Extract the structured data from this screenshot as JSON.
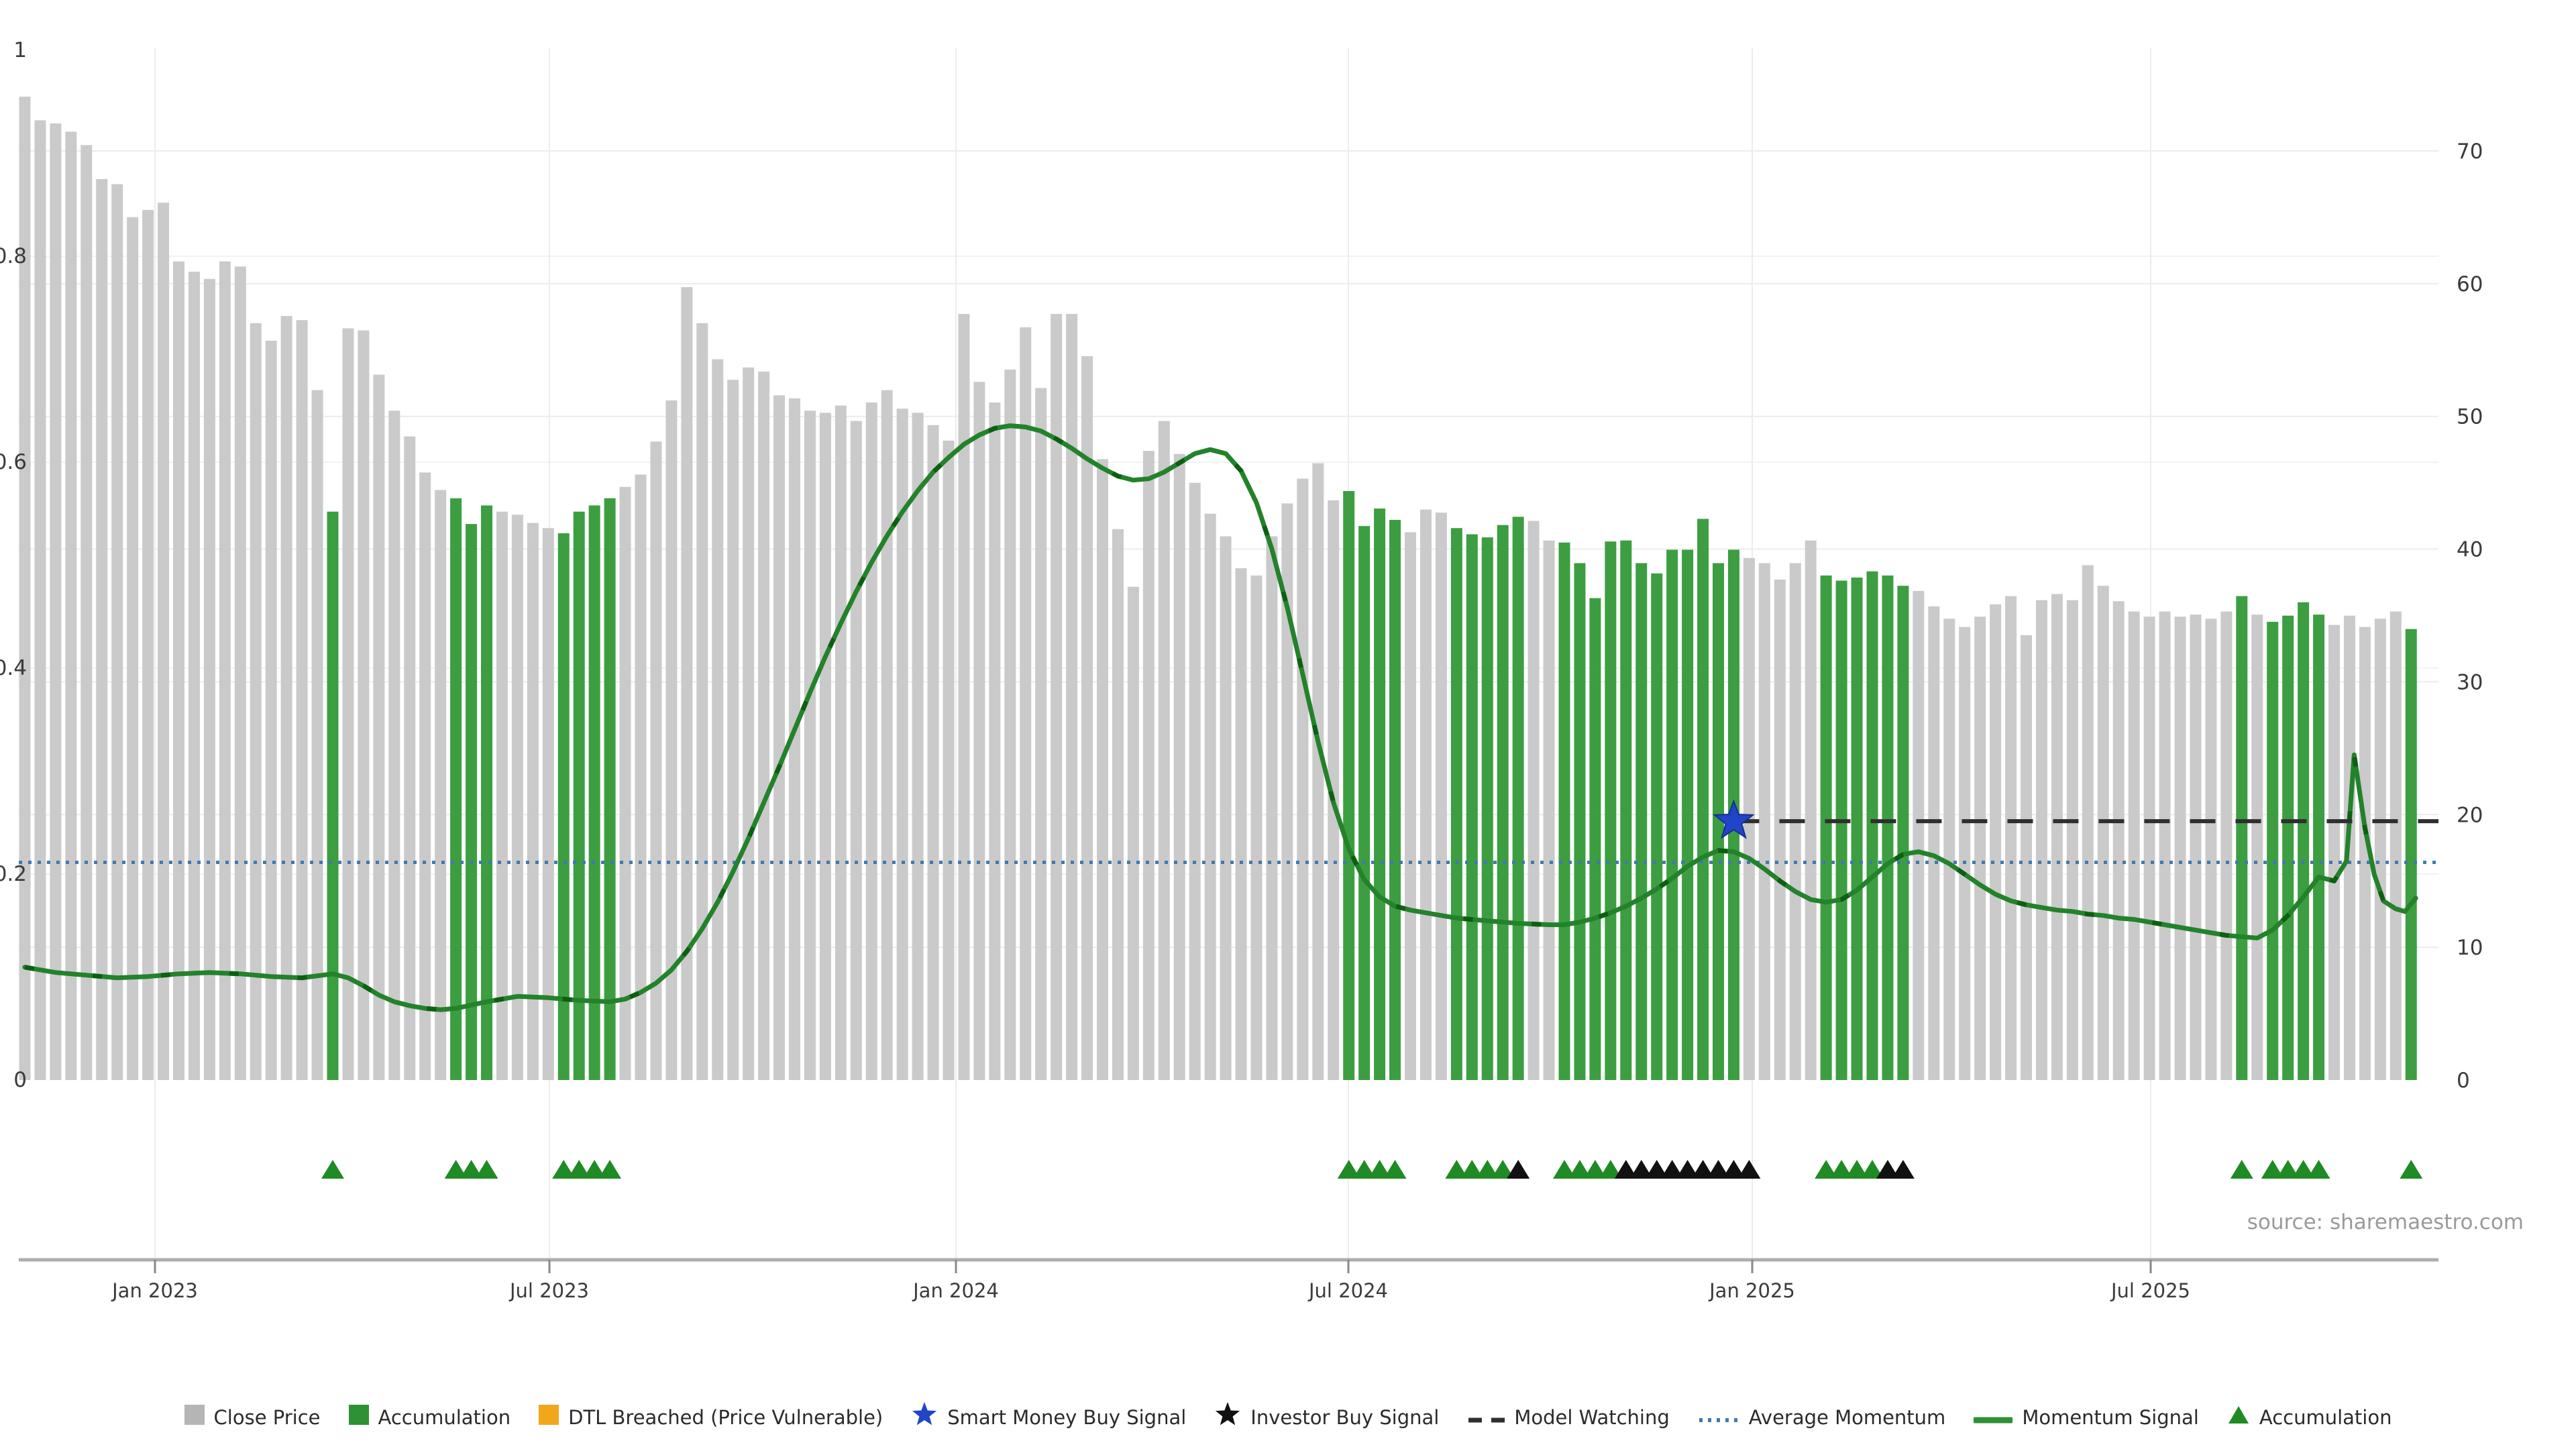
{
  "source_note": "source: sharemaestro.com",
  "colors": {
    "close_price_bar": "#cacaca",
    "accumulation_bar": "#3c9e41",
    "legend_gray": "#b5b5b5",
    "legend_green": "#2f9133",
    "dtl_breached": "#f2a71b",
    "smart_money_star": "#2144c8",
    "investor_star": "#111111",
    "model_watching_line": "#2f2f2f",
    "average_momentum_line": "#4379ad",
    "momentum_line": "#23822a",
    "momentum_line_dark": "#0d5f12",
    "triangle_green": "#1f8b24",
    "triangle_black": "#111111",
    "grid_line": "#ececec",
    "grid_line_minor": "#f2f2f2",
    "axis_line": "#adadad",
    "tick_mark": "#888888"
  },
  "legend": [
    {
      "marker": "square-gray",
      "label": "Close Price"
    },
    {
      "marker": "square-green",
      "label": "Accumulation"
    },
    {
      "marker": "square-orange",
      "label": "DTL Breached (Price Vulnerable)"
    },
    {
      "marker": "star-blue",
      "label": "Smart Money Buy Signal"
    },
    {
      "marker": "star-black",
      "label": "Investor Buy Signal"
    },
    {
      "marker": "dash-black",
      "label": "Model Watching"
    },
    {
      "marker": "dots-blue",
      "label": "Average Momentum"
    },
    {
      "marker": "line-green",
      "label": "Momentum Signal"
    },
    {
      "marker": "triangle-green",
      "label": "Accumulation"
    }
  ],
  "chart_data": {
    "type": "bar+line",
    "title": "",
    "left_axis": {
      "range": [
        0,
        1
      ],
      "ticks": [
        "0",
        "0.2",
        "0.4",
        "0.6",
        "0.8",
        "1"
      ],
      "tick_values": [
        0,
        0.2,
        0.4,
        0.6,
        0.8,
        1
      ]
    },
    "right_axis": {
      "range": [
        0,
        70
      ],
      "ticks": [
        "0",
        "10",
        "20",
        "30",
        "40",
        "50",
        "60",
        "70"
      ],
      "tick_values": [
        0,
        10,
        20,
        30,
        40,
        50,
        60,
        70
      ]
    },
    "x_ticks": [
      {
        "x": 231,
        "label": "Jan 2023"
      },
      {
        "x": 819,
        "label": "Jul 2023"
      },
      {
        "x": 1425,
        "label": "Jan 2024"
      },
      {
        "x": 2010,
        "label": "Jul 2024"
      },
      {
        "x": 2612,
        "label": "Jan 2025"
      },
      {
        "x": 3206,
        "label": "Jul 2025"
      }
    ],
    "close_price": [
      0.955,
      0.932,
      0.929,
      0.921,
      0.908,
      0.875,
      0.87,
      0.838,
      0.845,
      0.852,
      0.795,
      0.785,
      0.778,
      0.795,
      0.79,
      0.735,
      0.718,
      0.742,
      0.738,
      0.67,
      0.552,
      0.73,
      0.728,
      0.685,
      0.65,
      0.625,
      0.59,
      0.573,
      0.565,
      0.54,
      0.558,
      0.552,
      0.549,
      0.541,
      0.536,
      0.531,
      0.552,
      0.558,
      0.565,
      0.576,
      0.588,
      0.62,
      0.66,
      0.77,
      0.735,
      0.7,
      0.68,
      0.692,
      0.688,
      0.665,
      0.662,
      0.65,
      0.648,
      0.655,
      0.64,
      0.658,
      0.67,
      0.652,
      0.648,
      0.636,
      0.621,
      0.744,
      0.678,
      0.658,
      0.69,
      0.731,
      0.672,
      0.744,
      0.744,
      0.703,
      0.603,
      0.535,
      0.479,
      0.611,
      0.64,
      0.608,
      0.58,
      0.55,
      0.528,
      0.497,
      0.49,
      0.528,
      0.56,
      0.584,
      0.599,
      0.563,
      0.572,
      0.538,
      0.555,
      0.544,
      0.532,
      0.554,
      0.551,
      0.536,
      0.53,
      0.527,
      0.539,
      0.547,
      0.543,
      0.524,
      0.522,
      0.502,
      0.468,
      0.523,
      0.524,
      0.502,
      0.492,
      0.515,
      0.515,
      0.545,
      0.502,
      0.515,
      0.507,
      0.502,
      0.486,
      0.502,
      0.524,
      0.49,
      0.485,
      0.488,
      0.494,
      0.49,
      0.48,
      0.475,
      0.46,
      0.448,
      0.44,
      0.45,
      0.462,
      0.47,
      0.432,
      0.466,
      0.472,
      0.466,
      0.5,
      0.48,
      0.465,
      0.455,
      0.45,
      0.455,
      0.45,
      0.452,
      0.448,
      0.455,
      0.47,
      0.452,
      0.445,
      0.451,
      0.464,
      0.452,
      0.442,
      0.451,
      0.44,
      0.448,
      0.455,
      0.438
    ],
    "accumulation_bar_indices": [
      20,
      28,
      29,
      30,
      35,
      36,
      37,
      38,
      86,
      87,
      88,
      89,
      93,
      94,
      95,
      96,
      97,
      100,
      101,
      102,
      103,
      104,
      105,
      106,
      107,
      108,
      109,
      110,
      111,
      117,
      118,
      119,
      120,
      121,
      122,
      144,
      146,
      147,
      148,
      149,
      155
    ],
    "momentum_signal": [
      [
        0,
        8.5
      ],
      [
        2,
        8.1
      ],
      [
        4,
        7.9
      ],
      [
        6,
        7.7
      ],
      [
        8,
        7.8
      ],
      [
        10,
        8.0
      ],
      [
        12,
        8.1
      ],
      [
        14,
        8.0
      ],
      [
        16,
        7.8
      ],
      [
        18,
        7.7
      ],
      [
        20,
        8.0
      ],
      [
        21,
        7.7
      ],
      [
        22,
        7.1
      ],
      [
        23,
        6.4
      ],
      [
        24,
        5.9
      ],
      [
        25,
        5.6
      ],
      [
        26,
        5.4
      ],
      [
        27,
        5.3
      ],
      [
        28,
        5.4
      ],
      [
        30,
        5.9
      ],
      [
        32,
        6.3
      ],
      [
        34,
        6.2
      ],
      [
        36,
        6.0
      ],
      [
        38,
        5.9
      ],
      [
        39,
        6.1
      ],
      [
        40,
        6.6
      ],
      [
        41,
        7.3
      ],
      [
        42,
        8.3
      ],
      [
        43,
        9.7
      ],
      [
        44,
        11.4
      ],
      [
        45,
        13.4
      ],
      [
        46,
        15.7
      ],
      [
        47,
        18.2
      ],
      [
        48,
        20.9
      ],
      [
        49,
        23.6
      ],
      [
        50,
        26.4
      ],
      [
        51,
        29.2
      ],
      [
        52,
        31.9
      ],
      [
        53,
        34.4
      ],
      [
        54,
        36.8
      ],
      [
        55,
        39.0
      ],
      [
        56,
        41.0
      ],
      [
        57,
        42.8
      ],
      [
        58,
        44.4
      ],
      [
        59,
        45.8
      ],
      [
        60,
        46.9
      ],
      [
        61,
        47.9
      ],
      [
        62,
        48.6
      ],
      [
        63,
        49.1
      ],
      [
        64,
        49.3
      ],
      [
        65,
        49.2
      ],
      [
        66,
        48.9
      ],
      [
        67,
        48.3
      ],
      [
        68,
        47.6
      ],
      [
        69,
        46.8
      ],
      [
        70,
        46.1
      ],
      [
        71,
        45.5
      ],
      [
        72,
        45.2
      ],
      [
        73,
        45.3
      ],
      [
        74,
        45.8
      ],
      [
        75,
        46.5
      ],
      [
        76,
        47.2
      ],
      [
        77,
        47.5
      ],
      [
        78,
        47.2
      ],
      [
        79,
        45.9
      ],
      [
        80,
        43.5
      ],
      [
        81,
        40.0
      ],
      [
        82,
        35.6
      ],
      [
        83,
        30.6
      ],
      [
        84,
        25.5
      ],
      [
        85,
        20.9
      ],
      [
        86,
        17.4
      ],
      [
        87,
        15.1
      ],
      [
        88,
        13.8
      ],
      [
        89,
        13.1
      ],
      [
        90,
        12.8
      ],
      [
        91,
        12.6
      ],
      [
        93,
        12.2
      ],
      [
        95,
        12.0
      ],
      [
        97,
        11.8
      ],
      [
        99,
        11.7
      ],
      [
        100,
        11.7
      ],
      [
        101,
        11.9
      ],
      [
        102,
        12.2
      ],
      [
        103,
        12.6
      ],
      [
        104,
        13.1
      ],
      [
        105,
        13.7
      ],
      [
        106,
        14.4
      ],
      [
        107,
        15.2
      ],
      [
        108,
        16.1
      ],
      [
        109,
        16.8
      ],
      [
        110,
        17.3
      ],
      [
        111,
        17.2
      ],
      [
        112,
        16.7
      ],
      [
        113,
        15.9
      ],
      [
        114,
        15.0
      ],
      [
        115,
        14.2
      ],
      [
        116,
        13.6
      ],
      [
        117,
        13.4
      ],
      [
        118,
        13.6
      ],
      [
        119,
        14.3
      ],
      [
        120,
        15.3
      ],
      [
        121,
        16.3
      ],
      [
        122,
        17.0
      ],
      [
        123,
        17.2
      ],
      [
        124,
        16.9
      ],
      [
        125,
        16.3
      ],
      [
        126,
        15.5
      ],
      [
        127,
        14.7
      ],
      [
        128,
        14.0
      ],
      [
        129,
        13.5
      ],
      [
        130,
        13.2
      ],
      [
        131,
        13.0
      ],
      [
        132,
        12.8
      ],
      [
        133,
        12.7
      ],
      [
        134,
        12.5
      ],
      [
        135,
        12.4
      ],
      [
        136,
        12.2
      ],
      [
        137,
        12.1
      ],
      [
        138,
        11.9
      ],
      [
        139,
        11.7
      ],
      [
        140,
        11.5
      ],
      [
        141,
        11.3
      ],
      [
        142,
        11.1
      ],
      [
        143,
        10.9
      ],
      [
        144,
        10.8
      ],
      [
        145,
        10.7
      ],
      [
        146,
        11.3
      ],
      [
        147,
        12.4
      ],
      [
        148,
        13.8
      ],
      [
        149,
        15.3
      ],
      [
        150,
        15.0
      ],
      [
        150.8,
        16.5
      ],
      [
        151.3,
        24.5
      ],
      [
        152,
        19.0
      ],
      [
        152.6,
        15.5
      ],
      [
        153.2,
        13.5
      ],
      [
        154,
        12.9
      ],
      [
        154.6,
        12.7
      ],
      [
        155.3,
        13.7
      ]
    ],
    "average_momentum_value": 16.4,
    "model_watching": {
      "value": 19.5,
      "start_index": 111
    },
    "smart_money_buy_signal": {
      "index": 111,
      "value": 19.5
    },
    "accumulation_marker_indices": [
      20,
      28,
      29,
      30,
      35,
      36,
      37,
      38,
      86,
      87,
      88,
      89,
      93,
      94,
      95,
      96,
      100,
      101,
      102,
      103,
      117,
      118,
      119,
      120,
      144,
      146,
      147,
      148,
      149,
      155
    ],
    "investor_marker_indices": [
      97,
      104,
      105,
      106,
      107,
      108,
      109,
      110,
      111,
      112,
      121,
      122
    ]
  }
}
